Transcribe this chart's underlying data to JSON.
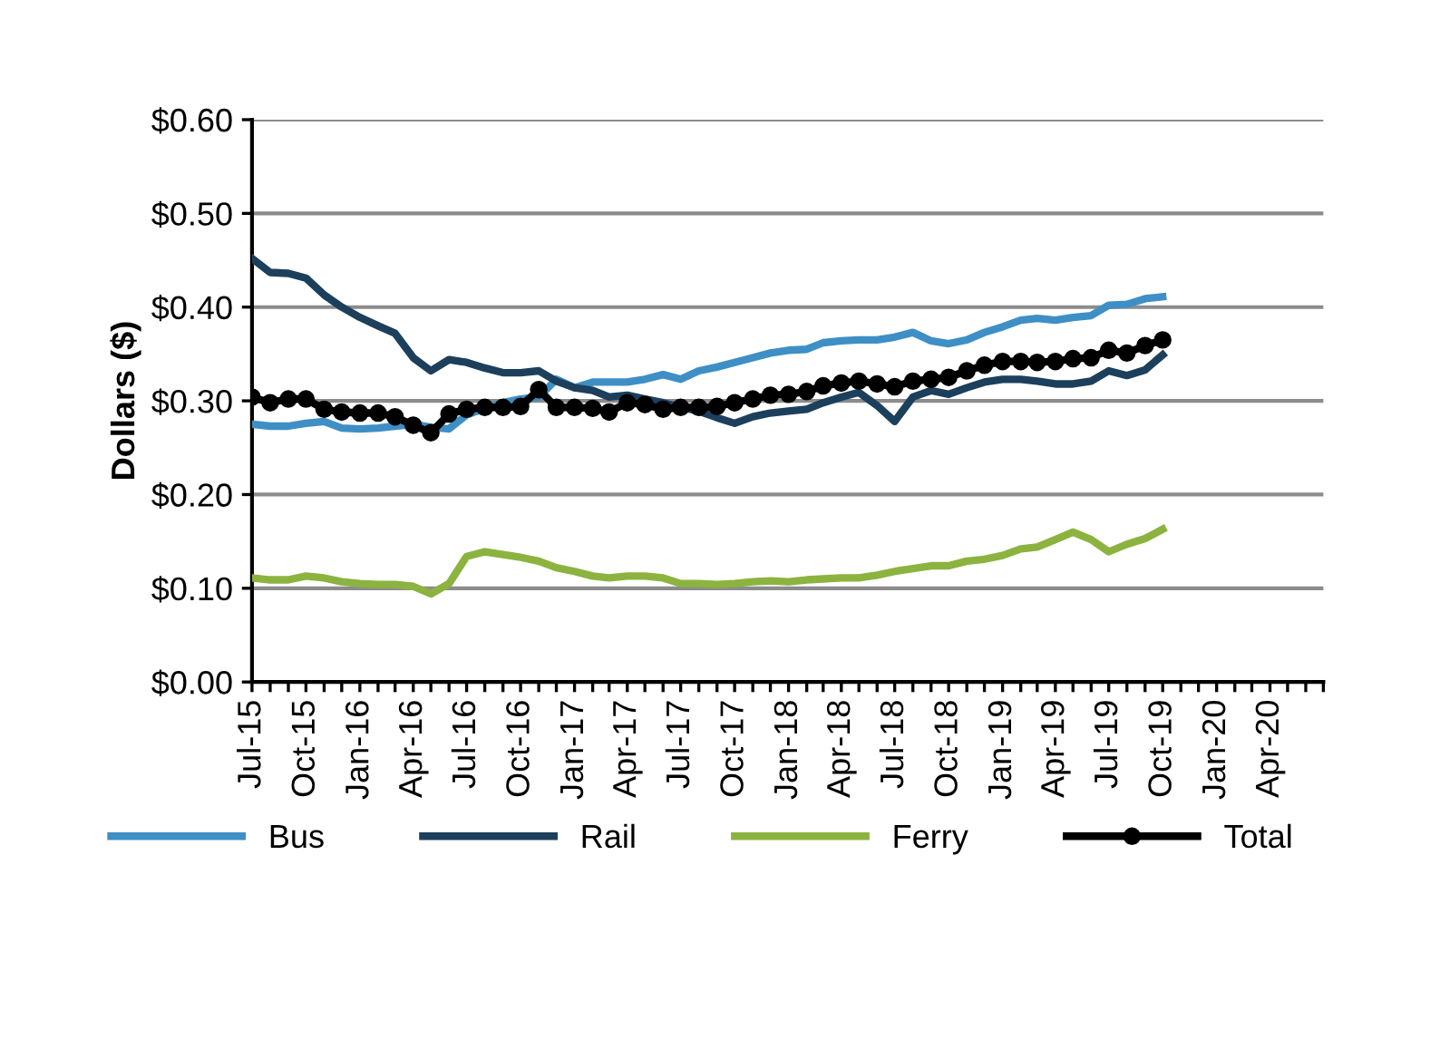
{
  "chart_data": {
    "type": "line",
    "ylabel": "Dollars ($)",
    "x": [
      "2015-07",
      "2015-08",
      "2015-09",
      "2015-10",
      "2015-11",
      "2015-12",
      "2016-01",
      "2016-02",
      "2016-03",
      "2016-04",
      "2016-05",
      "2016-06",
      "2016-07",
      "2016-08",
      "2016-09",
      "2016-10",
      "2016-11",
      "2016-12",
      "2017-01",
      "2017-02",
      "2017-03",
      "2017-04",
      "2017-05",
      "2017-06",
      "2017-07",
      "2017-08",
      "2017-09",
      "2017-10",
      "2017-11",
      "2017-12",
      "2018-01",
      "2018-02",
      "2018-03",
      "2018-04",
      "2018-05",
      "2018-06",
      "2018-07",
      "2018-08",
      "2018-09",
      "2018-10",
      "2018-11",
      "2018-12",
      "2019-01",
      "2019-02",
      "2019-03",
      "2019-04",
      "2019-05",
      "2019-06",
      "2019-07",
      "2019-08",
      "2019-09",
      "2019-10"
    ],
    "series": [
      {
        "name": "Bus",
        "color": "#3e8fc5",
        "marker": "none",
        "values": [
          0.275,
          0.273,
          0.273,
          0.276,
          0.278,
          0.271,
          0.27,
          0.271,
          0.273,
          0.275,
          0.272,
          0.27,
          0.285,
          0.292,
          0.298,
          0.302,
          0.304,
          0.323,
          0.314,
          0.32,
          0.32,
          0.32,
          0.323,
          0.328,
          0.323,
          0.332,
          0.336,
          0.341,
          0.346,
          0.351,
          0.354,
          0.355,
          0.362,
          0.364,
          0.365,
          0.365,
          0.368,
          0.373,
          0.364,
          0.361,
          0.365,
          0.373,
          0.379,
          0.386,
          0.388,
          0.386,
          0.389,
          0.391,
          0.402,
          0.403,
          0.409,
          0.411
        ]
      },
      {
        "name": "Rail",
        "color": "#1c3f5c",
        "marker": "none",
        "values": [
          0.452,
          0.437,
          0.436,
          0.431,
          0.413,
          0.4,
          0.389,
          0.38,
          0.372,
          0.346,
          0.332,
          0.344,
          0.341,
          0.335,
          0.33,
          0.33,
          0.332,
          0.321,
          0.314,
          0.311,
          0.304,
          0.306,
          0.302,
          0.298,
          0.293,
          0.289,
          0.282,
          0.276,
          0.283,
          0.287,
          0.289,
          0.291,
          0.298,
          0.304,
          0.309,
          0.295,
          0.278,
          0.304,
          0.311,
          0.307,
          0.314,
          0.32,
          0.323,
          0.323,
          0.321,
          0.318,
          0.318,
          0.321,
          0.332,
          0.327,
          0.333,
          0.349
        ]
      },
      {
        "name": "Ferry",
        "color": "#8cb33f",
        "marker": "none",
        "values": [
          0.111,
          0.109,
          0.109,
          0.113,
          0.111,
          0.107,
          0.105,
          0.104,
          0.104,
          0.102,
          0.094,
          0.105,
          0.134,
          0.139,
          0.136,
          0.133,
          0.129,
          0.122,
          0.118,
          0.113,
          0.111,
          0.113,
          0.113,
          0.111,
          0.105,
          0.105,
          0.104,
          0.105,
          0.107,
          0.108,
          0.107,
          0.109,
          0.11,
          0.111,
          0.111,
          0.114,
          0.118,
          0.121,
          0.124,
          0.124,
          0.129,
          0.131,
          0.135,
          0.142,
          0.144,
          0.152,
          0.16,
          0.152,
          0.139,
          0.147,
          0.153,
          0.163
        ]
      },
      {
        "name": "Total",
        "color": "#000000",
        "marker": "circle",
        "values": [
          0.304,
          0.298,
          0.302,
          0.302,
          0.291,
          0.288,
          0.287,
          0.287,
          0.283,
          0.274,
          0.266,
          0.286,
          0.291,
          0.293,
          0.293,
          0.294,
          0.312,
          0.293,
          0.293,
          0.292,
          0.288,
          0.298,
          0.296,
          0.291,
          0.293,
          0.293,
          0.294,
          0.298,
          0.302,
          0.306,
          0.307,
          0.31,
          0.316,
          0.319,
          0.321,
          0.318,
          0.315,
          0.321,
          0.323,
          0.325,
          0.332,
          0.338,
          0.342,
          0.342,
          0.341,
          0.342,
          0.345,
          0.346,
          0.354,
          0.351,
          0.359,
          0.365
        ]
      }
    ],
    "ylim": [
      0,
      0.6
    ],
    "yticks": [
      {
        "value": 0,
        "label": "$0.00"
      },
      {
        "value": 0.1,
        "label": "$0.10"
      },
      {
        "value": 0.2,
        "label": "$0.20"
      },
      {
        "value": 0.3,
        "label": "$0.30"
      },
      {
        "value": 0.4,
        "label": "$0.40"
      },
      {
        "value": 0.5,
        "label": "$0.50"
      },
      {
        "value": 0.6,
        "label": "$0.60"
      }
    ],
    "xlim": [
      "2015-07",
      "2020-07"
    ],
    "xticks": [
      {
        "value": "2015-07",
        "label": "Jul-15"
      },
      {
        "value": "2015-08",
        "label": null
      },
      {
        "value": "2015-09",
        "label": null
      },
      {
        "value": "2015-10",
        "label": "Oct-15"
      },
      {
        "value": "2015-11",
        "label": null
      },
      {
        "value": "2015-12",
        "label": null
      },
      {
        "value": "2016-01",
        "label": "Jan-16"
      },
      {
        "value": "2016-02",
        "label": null
      },
      {
        "value": "2016-03",
        "label": null
      },
      {
        "value": "2016-04",
        "label": "Apr-16"
      },
      {
        "value": "2016-05",
        "label": null
      },
      {
        "value": "2016-06",
        "label": null
      },
      {
        "value": "2016-07",
        "label": "Jul-16"
      },
      {
        "value": "2016-08",
        "label": null
      },
      {
        "value": "2016-09",
        "label": null
      },
      {
        "value": "2016-10",
        "label": "Oct-16"
      },
      {
        "value": "2016-11",
        "label": null
      },
      {
        "value": "2016-12",
        "label": null
      },
      {
        "value": "2017-01",
        "label": "Jan-17"
      },
      {
        "value": "2017-02",
        "label": null
      },
      {
        "value": "2017-03",
        "label": null
      },
      {
        "value": "2017-04",
        "label": "Apr-17"
      },
      {
        "value": "2017-05",
        "label": null
      },
      {
        "value": "2017-06",
        "label": null
      },
      {
        "value": "2017-07",
        "label": "Jul-17"
      },
      {
        "value": "2017-08",
        "label": null
      },
      {
        "value": "2017-09",
        "label": null
      },
      {
        "value": "2017-10",
        "label": "Oct-17"
      },
      {
        "value": "2017-11",
        "label": null
      },
      {
        "value": "2017-12",
        "label": null
      },
      {
        "value": "2018-01",
        "label": "Jan-18"
      },
      {
        "value": "2018-02",
        "label": null
      },
      {
        "value": "2018-03",
        "label": null
      },
      {
        "value": "2018-04",
        "label": "Apr-18"
      },
      {
        "value": "2018-05",
        "label": null
      },
      {
        "value": "2018-06",
        "label": null
      },
      {
        "value": "2018-07",
        "label": "Jul-18"
      },
      {
        "value": "2018-08",
        "label": null
      },
      {
        "value": "2018-09",
        "label": null
      },
      {
        "value": "2018-10",
        "label": "Oct-18"
      },
      {
        "value": "2018-11",
        "label": null
      },
      {
        "value": "2018-12",
        "label": null
      },
      {
        "value": "2019-01",
        "label": "Jan-19"
      },
      {
        "value": "2019-02",
        "label": null
      },
      {
        "value": "2019-03",
        "label": null
      },
      {
        "value": "2019-04",
        "label": "Apr-19"
      },
      {
        "value": "2019-05",
        "label": null
      },
      {
        "value": "2019-06",
        "label": null
      },
      {
        "value": "2019-07",
        "label": "Jul-19"
      },
      {
        "value": "2019-08",
        "label": null
      },
      {
        "value": "2019-09",
        "label": null
      },
      {
        "value": "2019-10",
        "label": "Oct-19"
      },
      {
        "value": "2019-11",
        "label": null
      },
      {
        "value": "2019-12",
        "label": null
      },
      {
        "value": "2020-01",
        "label": "Jan-20"
      },
      {
        "value": "2020-02",
        "label": null
      },
      {
        "value": "2020-03",
        "label": null
      },
      {
        "value": "2020-04",
        "label": "Apr-20"
      },
      {
        "value": "2020-05",
        "label": null
      },
      {
        "value": "2020-06",
        "label": null
      },
      {
        "value": "2020-07",
        "label": null
      }
    ],
    "grid": "y",
    "legend": "bottom",
    "line_style": "solid"
  }
}
